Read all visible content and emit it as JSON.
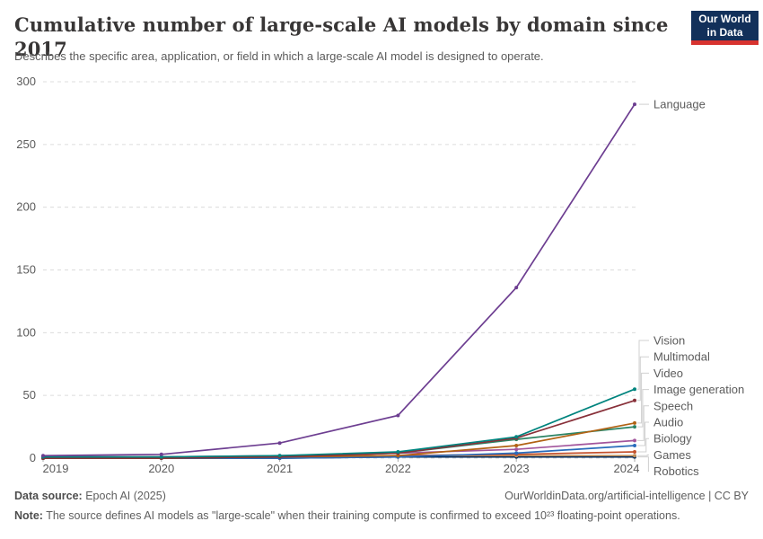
{
  "header": {
    "title": "Cumulative number of large-scale AI models by domain since 2017",
    "subtitle": "Describes the specific area, application, or field in which a large-scale AI model is designed to operate.",
    "logo": {
      "line1": "Our World",
      "line2": "in Data",
      "bg_color": "#12305a",
      "stripe_color": "#d7332f"
    }
  },
  "chart_data": {
    "type": "line",
    "title": "Cumulative number of large-scale AI models by domain since 2017",
    "x": [
      2019,
      2020,
      2021,
      2022,
      2023,
      2024
    ],
    "x_tick_labels": [
      "2019",
      "2020",
      "2021",
      "2022",
      "2023",
      "2024"
    ],
    "series": [
      {
        "name": "Language",
        "color": "#6D3E91",
        "values": [
          2,
          3,
          12,
          34,
          136,
          282
        ]
      },
      {
        "name": "Vision",
        "color": "#00847E",
        "values": [
          1,
          1,
          2,
          5,
          17,
          55
        ]
      },
      {
        "name": "Multimodal",
        "color": "#883039",
        "values": [
          0,
          0,
          1,
          4,
          16,
          46
        ]
      },
      {
        "name": "Video",
        "color": "#B16214",
        "values": [
          0,
          0,
          1,
          2,
          10,
          28
        ]
      },
      {
        "name": "Image generation",
        "color": "#2C8465",
        "values": [
          0,
          0,
          1,
          4,
          15,
          25
        ]
      },
      {
        "name": "Speech",
        "color": "#A2559C",
        "values": [
          1,
          1,
          2,
          4,
          7,
          14
        ]
      },
      {
        "name": "Audio",
        "color": "#286BBB",
        "values": [
          0,
          0,
          0,
          1,
          4,
          10
        ]
      },
      {
        "name": "Biology",
        "color": "#C4522E",
        "values": [
          0,
          1,
          1,
          2,
          3,
          5
        ]
      },
      {
        "name": "Games",
        "color": "#BC8E5A",
        "values": [
          1,
          1,
          1,
          2,
          2,
          2
        ]
      },
      {
        "name": "Robotics",
        "color": "#00295B",
        "values": [
          0,
          0,
          0,
          1,
          1,
          1
        ]
      }
    ],
    "ylim": [
      0,
      300
    ],
    "yticks": [
      0,
      50,
      100,
      150,
      200,
      250,
      300
    ],
    "grid": "horizontal dashed",
    "gridline_color": "#dcdcdc",
    "legend_position": "right edge labels with connector lines",
    "xlabel": "",
    "ylabel": ""
  },
  "footer": {
    "source_label": "Data source:",
    "source_value": "Epoch AI (2025)",
    "link": "OurWorldinData.org/artificial-intelligence | CC BY",
    "note_label": "Note:",
    "note_value": "The source defines AI models as \"large-scale\" when their training compute is confirmed to exceed 10²³ floating-point operations."
  }
}
